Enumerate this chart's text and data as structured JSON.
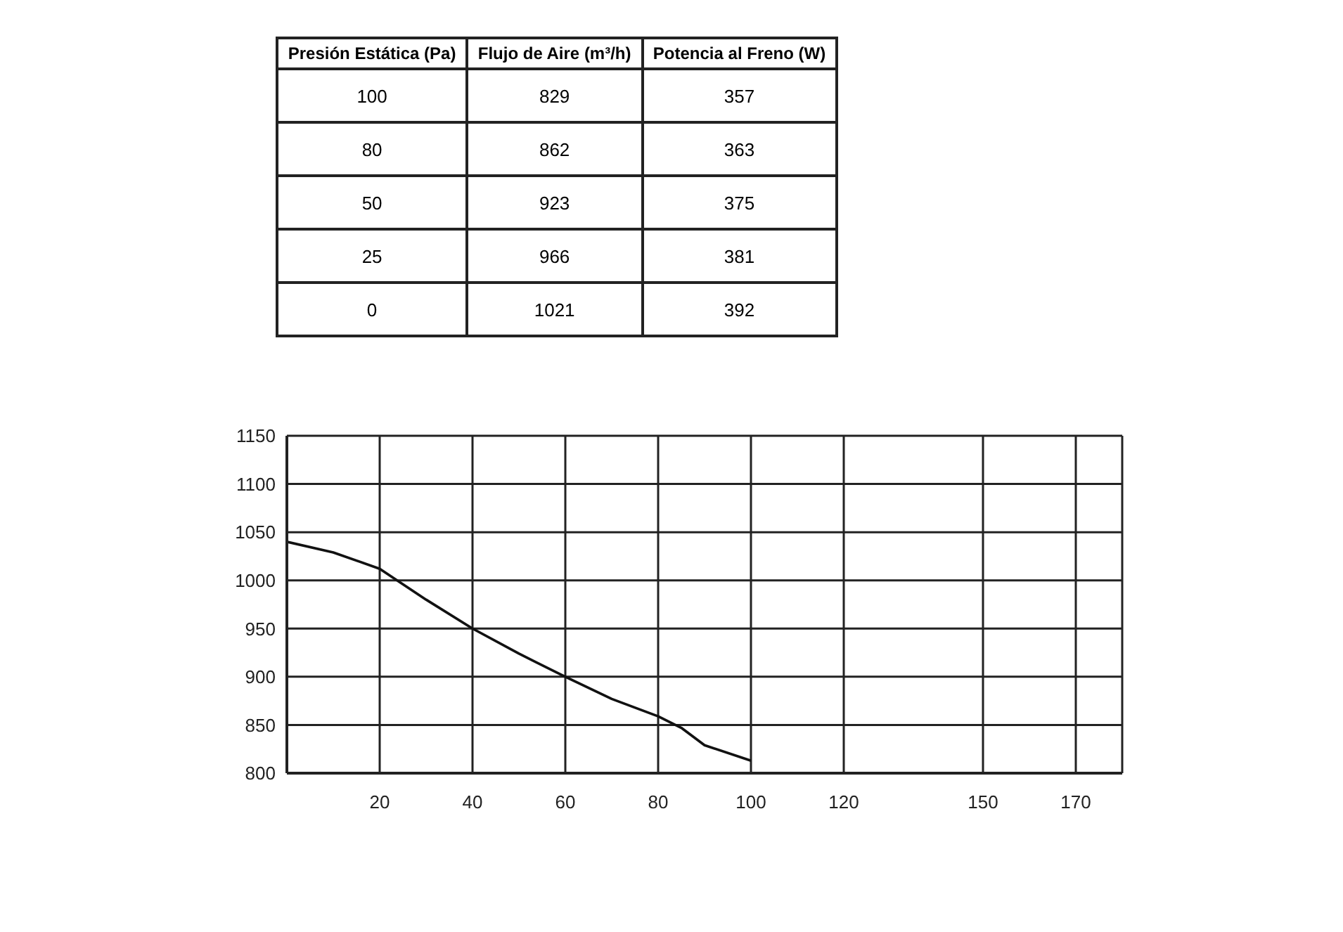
{
  "chart_data": [
    {
      "type": "other",
      "data_labels": true,
      "xlabel": "Presión Estática (Pa)",
      "categories": [
        "100",
        "80",
        "50",
        "25",
        "0"
      ],
      "series": [
        {
          "name": "Flujo de Aire (m³/h)",
          "values": [
            829,
            862,
            923,
            966,
            1021
          ]
        },
        {
          "name": "Potencia al Freno (W)",
          "values": [
            357,
            363,
            375,
            381,
            392
          ]
        }
      ]
    },
    {
      "type": "line",
      "x": [
        0,
        10,
        20,
        30,
        40,
        50,
        60,
        70,
        80,
        85,
        90,
        100
      ],
      "series": [
        {
          "color": "#111111",
          "values": [
            1040,
            1029,
            1012,
            980,
            950,
            924,
            900,
            877,
            859,
            847,
            829,
            813
          ]
        }
      ],
      "xlim": [
        0,
        180
      ],
      "xticks": [
        20,
        40,
        60,
        80,
        100,
        120,
        150,
        170
      ],
      "ylim": [
        800,
        1150
      ],
      "yticks": [
        800,
        850,
        900,
        950,
        1000,
        1050,
        1100,
        1150
      ],
      "grid": true,
      "marker": "none",
      "line_style": "solid"
    }
  ]
}
